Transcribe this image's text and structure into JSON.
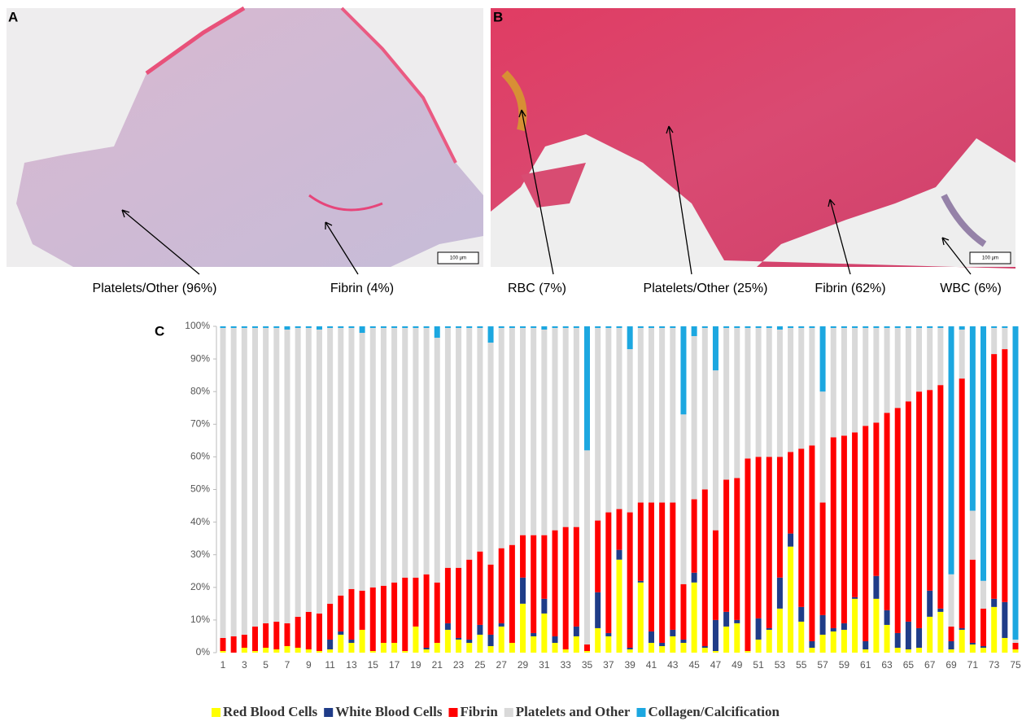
{
  "panels": [
    {
      "label": "A",
      "scale": "100 µm",
      "annotations": [
        "Platelets/Other  (96%)",
        "Fibrin (4%)"
      ]
    },
    {
      "label": "B",
      "scale": "100 µm",
      "annotations": [
        "RBC (7%)",
        "Platelets/Other  (25%)",
        "Fibrin (62%)",
        "WBC (6%)"
      ]
    },
    {
      "label": "C"
    }
  ],
  "chart_data": {
    "type": "stacked-bar",
    "categories": [
      "1",
      null,
      "3",
      null,
      "5",
      null,
      "7",
      null,
      "9",
      null,
      "11",
      null,
      "13",
      null,
      "15",
      null,
      "17",
      null,
      "19",
      null,
      "21",
      null,
      "23",
      null,
      "25",
      null,
      "27",
      null,
      "29",
      null,
      "31",
      null,
      "33",
      null,
      "35",
      null,
      "37",
      null,
      "39",
      null,
      "41",
      null,
      "43",
      null,
      "45",
      null,
      "47",
      null,
      "49",
      null,
      "51",
      null,
      "53",
      null,
      "55",
      null,
      "57",
      null,
      "59",
      null,
      "61",
      null,
      "63",
      null,
      "65",
      null,
      "67",
      null,
      "69",
      null,
      "71",
      null,
      "73",
      null,
      "75"
    ],
    "series": [
      {
        "name": "Red Blood Cells",
        "color": "#ffff00",
        "values": [
          0.5,
          0,
          1.5,
          0.5,
          1.5,
          1,
          2,
          1.5,
          1,
          0.5,
          1,
          5.5,
          3,
          7,
          0.5,
          3,
          3,
          0.5,
          8,
          1,
          3,
          7,
          4,
          3,
          5.5,
          2,
          8,
          3,
          15,
          5,
          12,
          3,
          1,
          5,
          0.5,
          7.5,
          5,
          28.5,
          1,
          21.5,
          3,
          2,
          5,
          3,
          21.5,
          1.5,
          0.5,
          8,
          9,
          0.5,
          4,
          7,
          13.5,
          32.5,
          9.5,
          1.5,
          5.5,
          6.5,
          7,
          16.5,
          1,
          16.5,
          8.5,
          1.5,
          1,
          1.5,
          11,
          12.5,
          1,
          7,
          2.5,
          1.5,
          14,
          4.5,
          1
        ]
      },
      {
        "name": "White Blood Cells",
        "color": "#1f3c88",
        "values": [
          0,
          0,
          0,
          0,
          0,
          0,
          0,
          0,
          0,
          0,
          3,
          1,
          1,
          0,
          0,
          0,
          0,
          0,
          0,
          0.5,
          0,
          2,
          0.5,
          1,
          3,
          3.5,
          1,
          0,
          8,
          1,
          4.5,
          2,
          0,
          3,
          0,
          11,
          1,
          3,
          0.5,
          0.5,
          3.5,
          1,
          2,
          1,
          3,
          0.5,
          9.5,
          4.5,
          1,
          0,
          6.5,
          0.5,
          9.5,
          4,
          4.5,
          2,
          6,
          1,
          2,
          0.5,
          2.5,
          7,
          4.5,
          4.5,
          8.5,
          6,
          8,
          1,
          2.5,
          0.5,
          0.5,
          0.5,
          2.5,
          11,
          0
        ]
      },
      {
        "name": "Fibrin",
        "color": "#ff0000",
        "values": [
          4,
          5,
          4,
          7.5,
          7.5,
          8.5,
          7,
          9.5,
          11.5,
          11.5,
          11,
          11,
          15.5,
          12,
          19.5,
          17.5,
          18.5,
          22.5,
          15,
          22.5,
          18.5,
          17,
          21.5,
          24.5,
          22.5,
          21.5,
          23,
          30,
          13,
          30,
          19.5,
          32.5,
          37.5,
          30.5,
          2,
          22,
          37,
          12.5,
          41.5,
          24,
          39.5,
          43,
          39,
          17,
          22.5,
          48,
          27.5,
          40.5,
          43.5,
          59,
          49.5,
          52.5,
          37,
          25,
          48.5,
          60,
          34.5,
          58.5,
          57.5,
          50.5,
          66,
          47,
          60.5,
          69,
          67.5,
          72.5,
          61.5,
          68.5,
          4.5,
          76.5,
          25.5,
          11.5,
          75,
          77.5,
          2
        ]
      },
      {
        "name": "Platelets and Other",
        "color": "#d9d9d9",
        "values": [
          95,
          94.5,
          94,
          91.5,
          90.5,
          90,
          90,
          88.5,
          87,
          87,
          84.5,
          82,
          80,
          79,
          79.5,
          79,
          78,
          76.5,
          76.5,
          75.5,
          75,
          73.5,
          73.5,
          71,
          68.5,
          68,
          67.5,
          66.5,
          63.5,
          63.5,
          63,
          62,
          61,
          61,
          59.5,
          59,
          56.5,
          55.5,
          50,
          53.5,
          53.5,
          53.5,
          53.5,
          52,
          50,
          49.5,
          49,
          46.5,
          46,
          40,
          39.5,
          39.5,
          39,
          38,
          37,
          36,
          34,
          33.5,
          33,
          32,
          30,
          29,
          26,
          24.5,
          22.5,
          19.5,
          19,
          17.5,
          16,
          15,
          15,
          8.5,
          8,
          6.5,
          1
        ]
      },
      {
        "name": "Collagen/Calcification",
        "color": "#1ca7e0",
        "values": [
          0.5,
          0.5,
          0.5,
          0.5,
          0.5,
          0.5,
          1,
          0.5,
          0.5,
          1,
          0.5,
          0.5,
          0.5,
          2,
          0.5,
          0.5,
          0.5,
          0.5,
          0.5,
          0.5,
          3.5,
          0.5,
          0.5,
          0.5,
          0.5,
          5,
          0.5,
          0.5,
          0.5,
          0.5,
          1,
          0.5,
          0.5,
          0.5,
          38,
          0.5,
          0.5,
          0.5,
          7,
          0.5,
          0.5,
          0.5,
          0.5,
          27,
          3,
          0.5,
          13.5,
          0.5,
          0.5,
          0.5,
          0.5,
          0.5,
          1,
          0.5,
          0.5,
          0.5,
          20,
          0.5,
          0.5,
          0.5,
          0.5,
          0.5,
          0.5,
          0.5,
          0.5,
          0.5,
          0.5,
          0.5,
          76,
          1,
          56.5,
          78,
          0.5,
          0.5,
          96
        ]
      }
    ],
    "ylim": [
      0,
      100
    ],
    "yticks": [
      {
        "value": 0,
        "label": "0%"
      },
      {
        "value": 10,
        "label": "10%"
      },
      {
        "value": 20,
        "label": "20%"
      },
      {
        "value": 30,
        "label": "30%"
      },
      {
        "value": 40,
        "label": "40%"
      },
      {
        "value": 50,
        "label": "50%"
      },
      {
        "value": 60,
        "label": "60%"
      },
      {
        "value": 70,
        "label": "70%"
      },
      {
        "value": 80,
        "label": "80%"
      },
      {
        "value": 90,
        "label": "90%"
      },
      {
        "value": 100,
        "label": "100%"
      }
    ],
    "grid": false,
    "legend": "bottom"
  }
}
